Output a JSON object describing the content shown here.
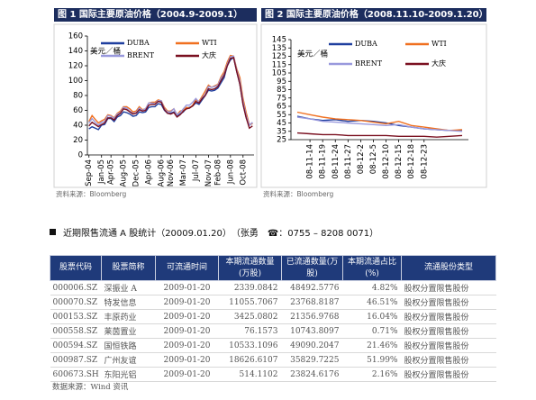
{
  "chart_data": [
    {
      "type": "line",
      "title": "图 1  国际主要原油价格（2004.9-2009.1）",
      "unit": "美元／桶",
      "source": "资料来源：Bloomberg",
      "categories": [
        "Sep-04",
        null,
        null,
        null,
        "Jan-05",
        null,
        null,
        "Apr-05",
        null,
        null,
        null,
        "Aug-05",
        null,
        null,
        null,
        "Dec-05",
        null,
        null,
        null,
        "Apr-06",
        null,
        null,
        null,
        "Aug-06",
        null,
        null,
        "Nov-06",
        null,
        null,
        null,
        "Mar-07",
        null,
        null,
        null,
        "Jul-07",
        null,
        null,
        null,
        "Nov-07",
        null,
        null,
        "Feb-08",
        null,
        null,
        null,
        "Jun-08",
        null,
        null,
        null,
        "Oct-08",
        null,
        null,
        null
      ],
      "ylim": [
        0,
        160
      ],
      "yticks": [
        0,
        20,
        40,
        60,
        80,
        100,
        120,
        140,
        160
      ],
      "series": [
        {
          "name": "DUBA",
          "color": "#1f3f9f",
          "values": [
            35,
            38,
            36,
            34,
            40,
            41,
            49,
            49,
            45,
            51,
            53,
            58,
            57,
            55,
            52,
            53,
            58,
            57,
            58,
            64,
            65,
            65,
            69,
            68,
            60,
            56,
            56,
            58,
            52,
            55,
            58,
            63,
            64,
            66,
            70,
            68,
            74,
            80,
            87,
            86,
            87,
            90,
            97,
            104,
            120,
            128,
            131,
            112,
            95,
            68,
            50,
            40,
            43
          ]
        },
        {
          "name": "WTI",
          "color": "#f07020",
          "values": [
            45,
            53,
            48,
            43,
            46,
            48,
            54,
            53,
            50,
            56,
            59,
            65,
            65,
            62,
            58,
            59,
            65,
            61,
            62,
            70,
            71,
            71,
            74,
            73,
            64,
            59,
            59,
            62,
            54,
            59,
            60,
            64,
            63,
            67,
            74,
            72,
            79,
            86,
            94,
            91,
            93,
            95,
            105,
            112,
            125,
            134,
            133,
            116,
            104,
            76,
            57,
            41,
            42
          ]
        },
        {
          "name": "BRENT",
          "color": "#9999dd",
          "values": [
            43,
            49,
            44,
            40,
            44,
            45,
            53,
            52,
            49,
            55,
            57,
            64,
            63,
            59,
            56,
            57,
            63,
            60,
            62,
            70,
            70,
            69,
            73,
            73,
            62,
            58,
            58,
            62,
            54,
            57,
            62,
            67,
            67,
            71,
            76,
            71,
            77,
            82,
            92,
            91,
            92,
            94,
            103,
            109,
            122,
            132,
            133,
            114,
            99,
            72,
            53,
            40,
            44
          ]
        },
        {
          "name": "大庆",
          "color": "#7a1020",
          "values": [
            39,
            44,
            41,
            38,
            41,
            43,
            50,
            50,
            47,
            53,
            56,
            62,
            61,
            58,
            55,
            56,
            61,
            59,
            60,
            67,
            68,
            68,
            72,
            71,
            61,
            56,
            55,
            57,
            51,
            54,
            59,
            62,
            63,
            66,
            72,
            70,
            76,
            80,
            89,
            88,
            89,
            92,
            100,
            107,
            120,
            130,
            131,
            112,
            95,
            68,
            50,
            36,
            39
          ]
        }
      ]
    },
    {
      "type": "line",
      "title": "图 2  国际主要原油价格（2008.11.10-2009.1.20）",
      "unit": "美元／桶",
      "source": "资料来源：Bloomberg",
      "categories": [
        null,
        "08-11-14",
        "08-11-19",
        "08-11-24",
        "08-11-27",
        "08-12-2",
        "08-12-5",
        "08-12-10",
        "08-12-15",
        "08-12-18",
        "08-12-23",
        null,
        null,
        null
      ],
      "ylim": [
        25,
        145
      ],
      "yticks": [
        25,
        35,
        45,
        55,
        65,
        75,
        85,
        95,
        105,
        115,
        125,
        135,
        145
      ],
      "series": [
        {
          "name": "DUBA",
          "color": "#1f3f9f",
          "values": [
            53,
            50,
            48,
            49,
            47,
            48,
            47,
            45,
            42,
            40,
            38,
            37,
            36,
            36
          ]
        },
        {
          "name": "WTI",
          "color": "#f07020",
          "values": [
            58,
            55,
            52,
            50,
            49,
            48,
            46,
            44,
            47,
            42,
            40,
            38,
            36,
            37
          ]
        },
        {
          "name": "BRENT",
          "color": "#9999dd",
          "values": [
            52,
            50,
            47,
            46,
            45,
            44,
            43,
            42,
            43,
            40,
            38,
            37,
            36,
            35
          ]
        },
        {
          "name": "大庆",
          "color": "#7a1020",
          "values": [
            33,
            32,
            31,
            31,
            30,
            30,
            30,
            30,
            29,
            29,
            29,
            28,
            29,
            30
          ]
        }
      ]
    }
  ],
  "section": {
    "title": "近期限售流通 A 股统计（20009.01.20）　（张勇　☎：0755 – 8208 0071）"
  },
  "table": {
    "headers": [
      "股票代码",
      "股票简称",
      "可流通时间",
      "本期流通数量(万股)",
      "已流通数量(万股)",
      "本期流通占比(%)",
      "流通股份类型"
    ],
    "rows": [
      [
        "000006.SZ",
        "深振业 A",
        "2009-01-20",
        "2339.0842",
        "48492.5776",
        "4.82%",
        "股权分置限售股份"
      ],
      [
        "000070.SZ",
        "特发信息",
        "2009-01-20",
        "11055.7067",
        "23768.8187",
        "46.51%",
        "股权分置限售股份"
      ],
      [
        "000153.SZ",
        "丰原药业",
        "2009-01-20",
        "3425.0802",
        "21356.9768",
        "16.04%",
        "股权分置限售股份"
      ],
      [
        "000558.SZ",
        "莱茵置业",
        "2009-01-20",
        "76.1573",
        "10743.8097",
        "0.71%",
        "股权分置限售股份"
      ],
      [
        "000594.SZ",
        "国恒铁路",
        "2009-01-20",
        "10533.1096",
        "49090.2047",
        "21.46%",
        "股权分置限售股份"
      ],
      [
        "000987.SZ",
        "广州友谊",
        "2009-01-20",
        "18626.6107",
        "35829.7225",
        "51.99%",
        "股权分置限售股份"
      ],
      [
        "600673.SH",
        "东阳光铝",
        "2009-01-20",
        "514.1102",
        "23824.6176",
        "2.16%",
        "股权分置限售股份"
      ]
    ],
    "source": "数据来源：Wind 资讯"
  }
}
